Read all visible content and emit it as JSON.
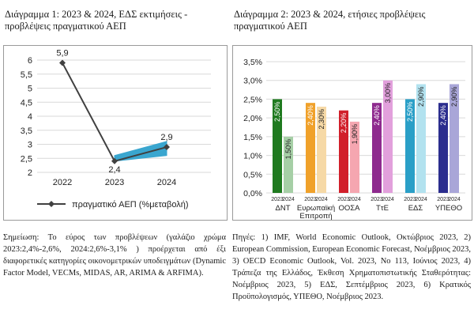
{
  "left": {
    "title": "Διάγραμμα 1: 2023 & 2024, ΕΔΣ εκτιμήσεις - προβλέψεις πραγματικού ΑΕΠ",
    "note": "Σημείωση: Το εύρος των προβλέψεων (γαλάζιο χρώμα 2023:2,4%-2,6%, 2024:2,6%-3,1% ) προέρχεται από έξι διαφορετικές κατηγορίες οικονομετρικών υποδειγμάτων (Dynamic Factor Model, VECMs, MIDAS, AR, ARIMA & ARFIMA)."
  },
  "right": {
    "title": "Διάγραμμα 2: 2023 & 2024, ετήσιες προβλέψεις πραγματικού ΑΕΠ",
    "note": "Πηγές: 1) IMF, World Economic Outlook, Οκτώβριος 2023, 2) European Commission, European Economic Forecast, Νοέμβριος 2023, 3) OECD Economic Outlook, Vol. 2023, No 113, Ιούνιος 2023, 4) Τράπεζα της Ελλάδος, Έκθεση Χρηματοπιστωτικής Σταθερότητας: Νοέμβριος 2023, 5) ΕΔΣ, Σεπτέμβριος 2023, 6) Κρατικός Προϋπολογισμός, ΥΠΕΘΟ, Νοέμβριος 2023."
  },
  "chart_data": [
    {
      "type": "line",
      "x": [
        "2022",
        "2023",
        "2024"
      ],
      "series": [
        {
          "name": "πραγματικό ΑΕΠ (%μεταβολή)",
          "values": [
            5.9,
            2.4,
            2.9
          ],
          "color": "#404040",
          "labels": [
            "5,9",
            "2,4",
            "2,9"
          ]
        }
      ],
      "band": {
        "x": [
          "2023",
          "2024"
        ],
        "low": [
          2.4,
          2.6
        ],
        "high": [
          2.6,
          3.1
        ],
        "color": "#3aa6cf"
      },
      "ylim": [
        2,
        6
      ],
      "yticks": [
        2,
        2.5,
        3,
        3.5,
        4,
        4.5,
        5,
        5.5,
        6
      ],
      "ytick_labels": [
        "2",
        "2,5",
        "3",
        "3,5",
        "4",
        "4,5",
        "5",
        "5,5",
        "6"
      ],
      "grid": true,
      "legend": "bottom"
    },
    {
      "type": "bar",
      "categories": [
        "ΔΝΤ",
        "Ευρωπαϊκή Επιτροπή",
        "ΟΟΣΑ",
        "ΤτΕ",
        "ΕΔΣ",
        "ΥΠΕΘΟ"
      ],
      "sub_labels": [
        "2023",
        "2024"
      ],
      "values_2023": [
        2.5,
        2.4,
        2.2,
        2.4,
        2.5,
        2.4
      ],
      "values_2024": [
        1.5,
        2.3,
        1.9,
        3.0,
        2.9,
        2.9
      ],
      "labels_2023": [
        "2,50%",
        "2,40%",
        "2,20%",
        "2,40%",
        "2,50%",
        "2,40%"
      ],
      "labels_2024": [
        "1,50%",
        "2,30%",
        "1,90%",
        "3,00%",
        "2,90%",
        "2,90%"
      ],
      "colors_2023": [
        "#1f7a1f",
        "#f0a12a",
        "#d11f2a",
        "#8e2a8e",
        "#2a9fc7",
        "#2b2d8e"
      ],
      "colors_2024": [
        "#a6cfa6",
        "#f6d9a6",
        "#f5a6b0",
        "#e2a0dc",
        "#b2e2ef",
        "#a9a6d8"
      ],
      "ylim": [
        0,
        3.5
      ],
      "yticks": [
        0,
        0.5,
        1,
        1.5,
        2,
        2.5,
        3,
        3.5
      ],
      "ytick_labels": [
        "0,0%",
        "0,5%",
        "1,0%",
        "1,5%",
        "2,0%",
        "2,5%",
        "3,0%",
        "3,5%"
      ],
      "grid": true
    }
  ]
}
